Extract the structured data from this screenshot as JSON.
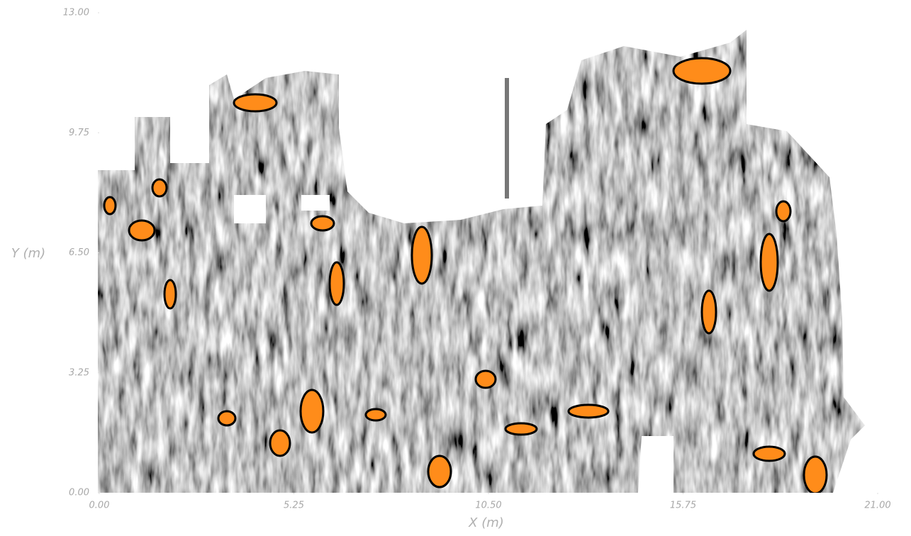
{
  "chart_data": {
    "type": "heatmap",
    "xlabel": "X (m)",
    "ylabel": "Y (m)",
    "xlim": [
      0,
      21
    ],
    "ylim": [
      0,
      13
    ],
    "xticks": [
      {
        "value": 0,
        "label": "0.00"
      },
      {
        "value": 5.25,
        "label": "5.25"
      },
      {
        "value": 10.5,
        "label": "10.50"
      },
      {
        "value": 15.75,
        "label": "15.75"
      },
      {
        "value": 21,
        "label": "21.00"
      }
    ],
    "yticks": [
      {
        "value": 0,
        "label": "0.00"
      },
      {
        "value": 3.25,
        "label": "3.25"
      },
      {
        "value": 6.5,
        "label": "6.50"
      },
      {
        "value": 9.75,
        "label": "9.75"
      },
      {
        "value": 13,
        "label": "13.00"
      }
    ]
  }
}
